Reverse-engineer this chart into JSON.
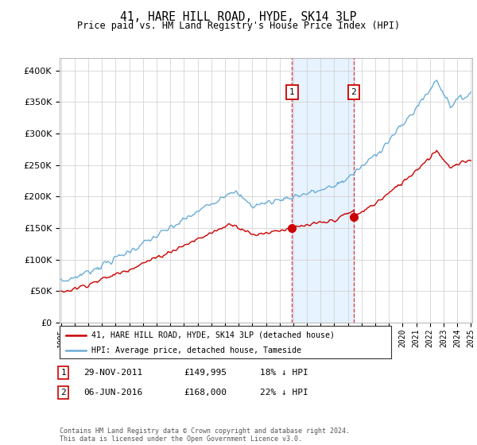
{
  "title": "41, HARE HILL ROAD, HYDE, SK14 3LP",
  "subtitle": "Price paid vs. HM Land Registry's House Price Index (HPI)",
  "hpi_label": "HPI: Average price, detached house, Tameside",
  "price_label": "41, HARE HILL ROAD, HYDE, SK14 3LP (detached house)",
  "hpi_color": "#6baed6",
  "price_color": "#cc0000",
  "annotation1_date": "29-NOV-2011",
  "annotation1_price": "£149,995",
  "annotation1_hpi": "18% ↓ HPI",
  "annotation2_date": "06-JUN-2016",
  "annotation2_price": "£168,000",
  "annotation2_hpi": "22% ↓ HPI",
  "ylim": [
    0,
    420000
  ],
  "yticks": [
    0,
    50000,
    100000,
    150000,
    200000,
    250000,
    300000,
    350000,
    400000
  ],
  "footer": "Contains HM Land Registry data © Crown copyright and database right 2024.\nThis data is licensed under the Open Government Licence v3.0.",
  "background_color": "#ffffff",
  "grid_color": "#cccccc",
  "sale1_year": 2011.916,
  "sale2_year": 2016.417,
  "sale1_price": 149995,
  "sale2_price": 168000,
  "xmin": 1995,
  "xmax": 2025
}
